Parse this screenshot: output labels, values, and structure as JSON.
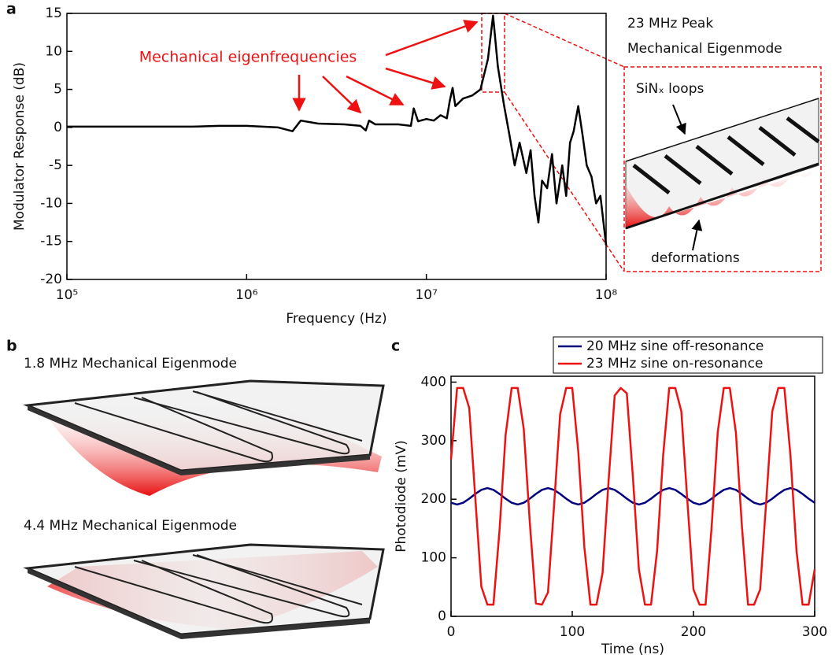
{
  "panel_labels": [
    "a",
    "b",
    "c"
  ],
  "chart_data": [
    {
      "type": "line",
      "xlabel": "Frequency (Hz)",
      "ylabel": "Modulator Response (dB)",
      "xscale": "log",
      "xlim": [
        100000,
        100000000
      ],
      "xticks": [
        {
          "value": 100000,
          "label": "10⁵"
        },
        {
          "value": 1000000,
          "label": "10⁶"
        },
        {
          "value": 10000000,
          "label": "10⁷"
        },
        {
          "value": 100000000,
          "label": "10⁸"
        }
      ],
      "ylim": [
        -20,
        15
      ],
      "yticks": [
        -20,
        -15,
        -10,
        -5,
        0,
        5,
        10,
        15
      ],
      "x": [
        100000,
        200000,
        500000,
        700000,
        1000000,
        1500000,
        1800000,
        2000000,
        2500000,
        3500000,
        4300000,
        4600000,
        4800000,
        5200000,
        7000000,
        8200000,
        8500000,
        9000000,
        10000000,
        11000000,
        12000000,
        13000000,
        13500000,
        14000000,
        14500000,
        16000000,
        18000000,
        20000000,
        22000000,
        23500000,
        25000000,
        27000000,
        29000000,
        31000000,
        33000000,
        36000000,
        38000000,
        40000000,
        42000000,
        44000000,
        47000000,
        50000000,
        53000000,
        57000000,
        60000000,
        63000000,
        66000000,
        70000000,
        74000000,
        78000000,
        83000000,
        88000000,
        93000000,
        100000000
      ],
      "series": [
        {
          "color": "#000000",
          "values": [
            0.1,
            0.1,
            0.1,
            0.2,
            0.2,
            0.0,
            -0.5,
            0.9,
            0.5,
            0.4,
            0.2,
            -0.4,
            0.9,
            0.4,
            0.4,
            0.2,
            2.5,
            0.8,
            1.1,
            0.9,
            1.6,
            1.2,
            3.5,
            5.2,
            2.8,
            3.8,
            4.2,
            5.0,
            9,
            14.7,
            8,
            3,
            -1,
            -5,
            -2,
            -6,
            -3,
            -9,
            -12.5,
            -7,
            -8,
            -3.5,
            -10,
            -5,
            -9,
            -2,
            -0.5,
            2.8,
            -1,
            -5,
            -6.5,
            -10,
            -9,
            -15.5
          ]
        }
      ],
      "annotations": [
        {
          "text": "Mechanical eigenfrequencies",
          "color": "#ee1111"
        }
      ]
    },
    {
      "type": "line",
      "xlabel": "Time (ns)",
      "ylabel": "Photodiode (mV)",
      "xlim": [
        0,
        300
      ],
      "xticks": [
        0,
        100,
        200,
        300
      ],
      "ylim": [
        0,
        410
      ],
      "yticks": [
        0,
        100,
        200,
        300,
        400
      ],
      "legend": "upper right",
      "x": [
        0,
        5,
        10,
        15,
        20,
        25,
        30,
        35,
        40,
        45,
        50,
        55,
        60,
        65,
        70,
        75,
        80,
        85,
        90,
        95,
        100,
        105,
        110,
        115,
        120,
        125,
        130,
        135,
        140,
        145,
        150,
        155,
        160,
        165,
        170,
        175,
        180,
        185,
        190,
        195,
        200,
        205,
        210,
        215,
        220,
        225,
        230,
        235,
        240,
        245,
        250,
        255,
        260,
        265,
        270,
        275,
        280,
        285,
        290,
        295,
        300
      ],
      "series": [
        {
          "name": "20 MHz sine off-resonance",
          "color": "#000080",
          "values": [
            194,
            191,
            194,
            201,
            209,
            216,
            219,
            216,
            209,
            201,
            194,
            191,
            194,
            201,
            209,
            216,
            219,
            216,
            209,
            201,
            194,
            191,
            194,
            201,
            209,
            216,
            219,
            216,
            209,
            201,
            194,
            191,
            194,
            201,
            209,
            216,
            219,
            216,
            209,
            201,
            194,
            191,
            194,
            201,
            209,
            216,
            219,
            216,
            209,
            201,
            194,
            191,
            194,
            201,
            209,
            216,
            219,
            216,
            209,
            201,
            194
          ]
        },
        {
          "name": "23 MHz sine on-resonance",
          "color": "#ee1111",
          "values": [
            268,
            390,
            390,
            356,
            203,
            51,
            20,
            20,
            147,
            309,
            390,
            390,
            320,
            160,
            22,
            20,
            41,
            189,
            345,
            390,
            390,
            281,
            118,
            20,
            20,
            74,
            232,
            377,
            390,
            381,
            239,
            80,
            20,
            20,
            112,
            275,
            390,
            390,
            350,
            196,
            46,
            20,
            20,
            153,
            314,
            390,
            390,
            314,
            153,
            20,
            20,
            46,
            196,
            350,
            390,
            390,
            275,
            112,
            20,
            20,
            80
          ]
        }
      ]
    }
  ],
  "inset": {
    "title_lines": [
      "23 MHz Peak",
      "Mechanical Eigenmode"
    ],
    "labels": [
      "SiNₓ loops",
      "deformations"
    ]
  },
  "illustrations": [
    "1.8 MHz Mechanical Eigenmode",
    "4.4 MHz Mechanical Eigenmode"
  ]
}
